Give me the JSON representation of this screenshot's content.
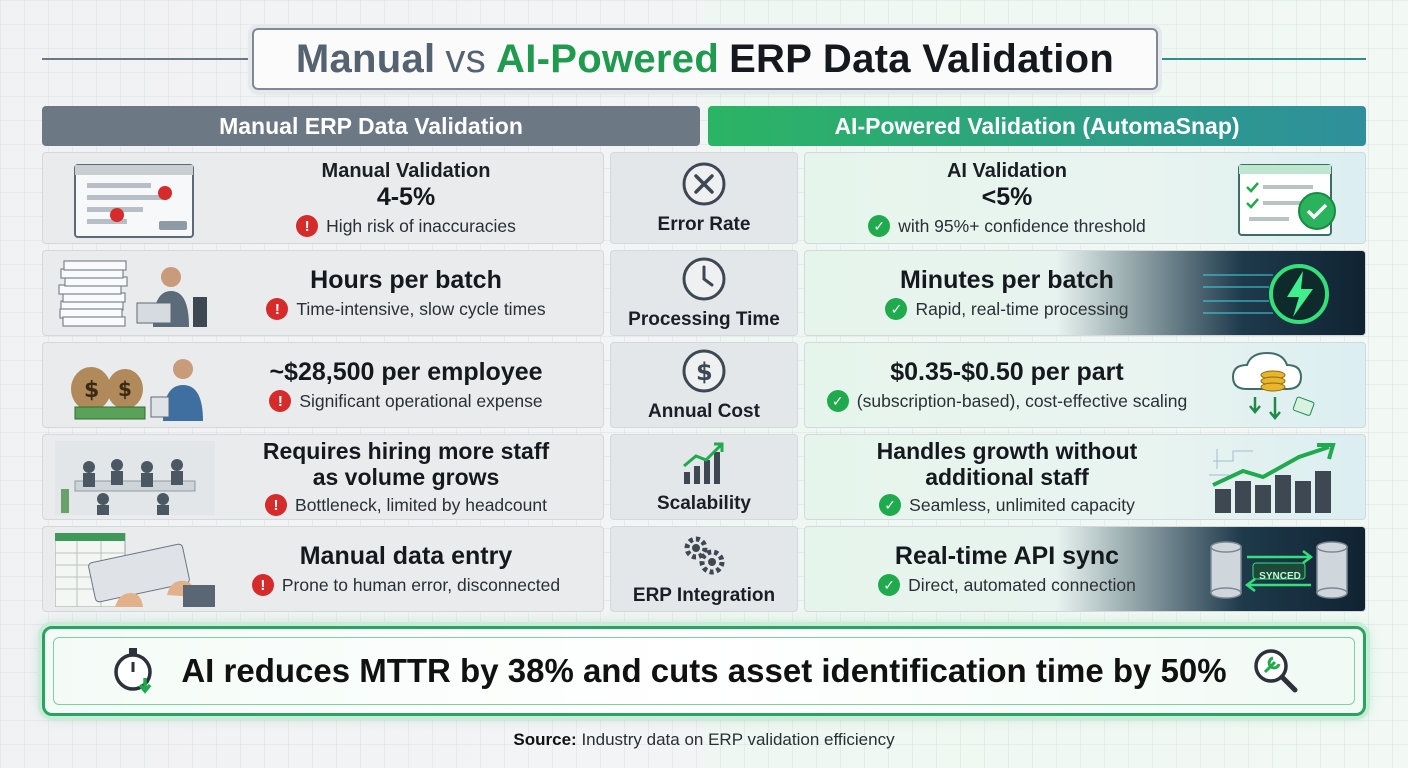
{
  "title": {
    "manual": "Manual",
    "vs": "vs",
    "ai": "AI-Powered",
    "rest": "ERP Data Validation"
  },
  "columns": {
    "left": "Manual ERP Data Validation",
    "right": "AI-Powered Validation (AutomaSnap)"
  },
  "rows": [
    {
      "metric": "Error Rate",
      "metric_icon": "x-circle-icon",
      "manual": {
        "heading": "Manual Validation",
        "value": "4-5%",
        "note": "High risk of inaccuracies"
      },
      "ai": {
        "heading": "AI Validation",
        "value": "<5%",
        "note": "with 95%+ confidence threshold"
      }
    },
    {
      "metric": "Processing Time",
      "metric_icon": "clock-icon",
      "manual": {
        "value": "Hours per batch",
        "note": "Time-intensive, slow cycle times"
      },
      "ai": {
        "value": "Minutes per batch",
        "note": "Rapid, real-time processing"
      }
    },
    {
      "metric": "Annual Cost",
      "metric_icon": "dollar-icon",
      "manual": {
        "value": "~$28,500 per employee",
        "note": "Significant operational expense"
      },
      "ai": {
        "value": "$0.35-$0.50 per part",
        "note": "(subscription-based), cost-effective scaling"
      }
    },
    {
      "metric": "Scalability",
      "metric_icon": "growth-chart-icon",
      "manual": {
        "value_line1": "Requires hiring more staff",
        "value_line2": "as volume grows",
        "note": "Bottleneck, limited by headcount"
      },
      "ai": {
        "value_line1": "Handles growth without",
        "value_line2": "additional staff",
        "note": "Seamless, unlimited capacity"
      }
    },
    {
      "metric": "ERP Integration",
      "metric_icon": "gears-icon",
      "manual": {
        "value": "Manual data entry",
        "note": "Prone to human error, disconnected"
      },
      "ai": {
        "value": "Real-time API sync",
        "note": "Direct, automated connection",
        "badge": "SYNCED"
      }
    }
  ],
  "banner": {
    "text": "AI reduces MTTR by 38% and cuts asset identification time by 50%"
  },
  "source": {
    "label": "Source:",
    "text": "Industry data on ERP validation efficiency"
  },
  "colors": {
    "manual": "#6c7884",
    "ai_green": "#1f9a4f",
    "warn": "#d62b2b",
    "ok": "#1faa4e"
  }
}
